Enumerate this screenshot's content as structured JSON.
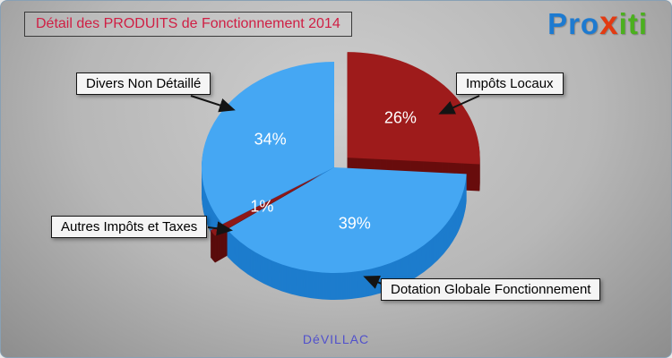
{
  "title": "Détail des PRODUITS de Fonctionnement 2014",
  "footer": "DéVILLAC",
  "logo": {
    "part1": "Pro",
    "part2": "x",
    "part3": "iti"
  },
  "chart_data": {
    "type": "pie",
    "title": "Détail des PRODUITS de Fonctionnement 2014",
    "unit": "%",
    "start_angle_deg": 0,
    "direction": "clockwise",
    "labels_as_callouts": true,
    "style": "3d-exploded",
    "slices": [
      {
        "label": "Impôts Locaux",
        "value": 26,
        "percent_label": "26%",
        "color": "#9e1b1b",
        "side_color": "#680d0d",
        "explode": 20
      },
      {
        "label": "Dotation Globale Fonctionnement",
        "value": 39,
        "percent_label": "39%",
        "color": "#45a7f3",
        "side_color": "#1d7ccd",
        "explode": 0
      },
      {
        "label": "Autres Impôts et Taxes",
        "value": 1,
        "percent_label": "1%",
        "color": "#8e1818",
        "side_color": "#5a0c0c",
        "explode": 16
      },
      {
        "label": "Divers Non Détaillé",
        "value": 34,
        "percent_label": "34%",
        "color": "#45a7f3",
        "side_color": "#1d7ccd",
        "explode": 0
      }
    ]
  }
}
